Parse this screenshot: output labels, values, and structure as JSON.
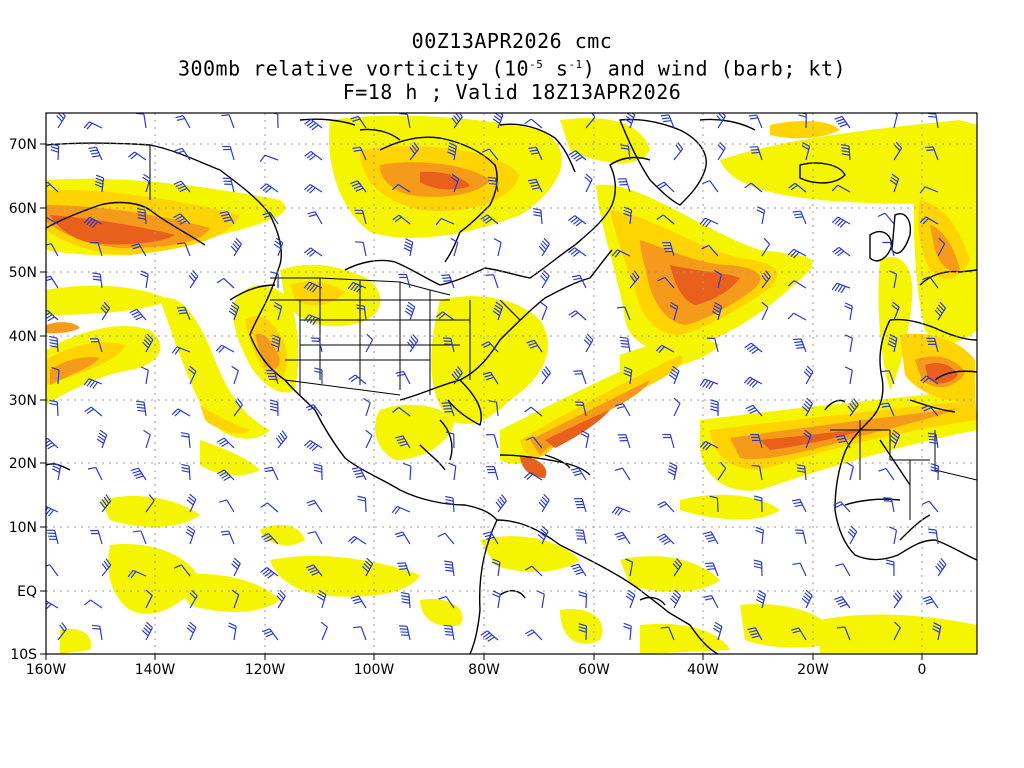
{
  "title": {
    "line1": "00Z13APR2026 cmc",
    "line2_pre": "300mb relative vorticity (10",
    "line2_exp1": "-5",
    "line2_mid": " s",
    "line2_exp2": "-1",
    "line2_post": ") and wind (barb; kt)",
    "line3": "F=18 h ; Valid 18Z13APR2026"
  },
  "axes": {
    "lat_labels": [
      "70N",
      "60N",
      "50N",
      "40N",
      "30N",
      "20N",
      "10N",
      "EQ",
      "10S"
    ],
    "lon_labels": [
      "160W",
      "140W",
      "120W",
      "100W",
      "80W",
      "60W",
      "40W",
      "20W",
      "0"
    ],
    "lat_range": [
      -10,
      75
    ],
    "lon_range": [
      -160,
      10
    ]
  },
  "colors": {
    "vort_light": "#f5f500",
    "vort_yellow": "#ffe800",
    "vort_amber": "#ffc000",
    "vort_orange": "#f59a1a",
    "vort_deep": "#e8601c",
    "barb": "#2a3ccc",
    "coast": "#000000",
    "grid": "#999999"
  },
  "map": {
    "projection": "cylindrical equidistant",
    "grid": "dotted every 20 deg lon / 10 deg lat"
  }
}
